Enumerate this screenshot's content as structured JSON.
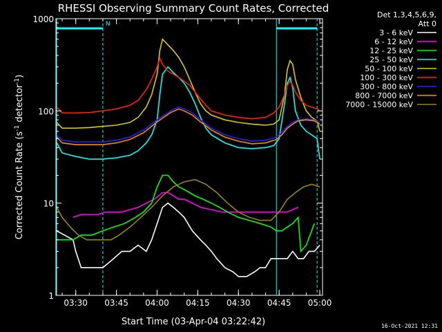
{
  "chart_data": {
    "type": "line",
    "title": "RHESSI Observing Summary Count Rates, Corrected",
    "xlabel": "Start Time (03-Apr-04 03:22:42)",
    "ylabel": "Corrected Count Rate (s⁻¹ detector⁻¹)",
    "y_scale": "log",
    "ylim": [
      1,
      1000
    ],
    "xlim": [
      "03:22:42",
      "05:01:00"
    ],
    "x_ticks": [
      "03:30",
      "03:45",
      "04:00",
      "04:15",
      "04:30",
      "04:45",
      "05:00"
    ],
    "y_ticks": [
      "1",
      "10",
      "100",
      "1000"
    ],
    "grid": false,
    "legend_position": "top-right",
    "legend_header": [
      "Det 1,3,4,5,6,9,",
      "Att 0"
    ],
    "annotations": [
      {
        "text": "N",
        "at": "03:40",
        "y": 900
      }
    ],
    "series": [
      {
        "name": "3 - 6 keV",
        "color": "#ffffff",
        "x": [
          "03:23",
          "03:29",
          "03:30",
          "03:32",
          "03:35",
          "03:38",
          "03:40",
          "03:44",
          "03:47",
          "03:50",
          "03:53",
          "03:56",
          "03:58",
          "04:00",
          "04:02",
          "04:04",
          "04:06",
          "04:08",
          "04:10",
          "04:13",
          "04:16",
          "04:18",
          "04:20",
          "04:22",
          "04:25",
          "04:28",
          "04:30",
          "04:33",
          "04:36",
          "04:38",
          "04:40",
          "04:42",
          "04:44",
          "04:46",
          "04:48",
          "04:50",
          "04:52",
          "04:54",
          "04:56",
          "04:58",
          "05:00"
        ],
        "values": [
          5,
          4,
          3,
          2,
          2,
          2,
          2,
          2.5,
          3,
          3,
          3.5,
          3,
          4,
          6,
          9,
          10,
          9,
          8,
          7,
          5,
          4,
          3.5,
          3,
          2.5,
          2,
          1.8,
          1.6,
          1.6,
          1.8,
          2,
          2,
          2.5,
          2.5,
          2.5,
          2.5,
          3,
          2.5,
          2.5,
          3,
          3,
          3.5
        ]
      },
      {
        "name": "6 - 12 keV",
        "color": "#ff00ff",
        "x": [
          "03:29",
          "03:32",
          "03:35",
          "03:38",
          "03:41",
          "03:44",
          "03:47",
          "03:50",
          "03:53",
          "03:56",
          "03:59",
          "04:02",
          "04:04",
          "04:06",
          "04:08",
          "04:10",
          "04:13",
          "04:16",
          "04:20",
          "04:24",
          "04:28",
          "04:32",
          "04:36",
          "04:40",
          "04:44",
          "04:46",
          "04:48",
          "04:50",
          "04:52"
        ],
        "values": [
          7,
          7.5,
          7.5,
          7.5,
          8,
          8,
          8,
          8.5,
          9,
          10,
          11,
          13,
          13,
          12,
          11,
          11,
          10,
          9,
          8.5,
          8,
          8,
          8,
          8,
          8,
          8,
          8,
          8,
          8.5,
          9
        ]
      },
      {
        "name": "12 - 25 keV",
        "color": "#00ff00",
        "x": [
          "03:23",
          "03:26",
          "03:29",
          "03:32",
          "03:36",
          "03:40",
          "03:44",
          "03:48",
          "03:52",
          "03:55",
          "03:58",
          "04:00",
          "04:02",
          "04:04",
          "04:06",
          "04:08",
          "04:10",
          "04:12",
          "04:14",
          "04:17",
          "04:20",
          "04:23",
          "04:26",
          "04:30",
          "04:34",
          "04:38",
          "04:42",
          "04:44",
          "04:46",
          "04:48",
          "04:50",
          "04:52",
          "04:53",
          "04:55",
          "04:58"
        ],
        "values": [
          4,
          4,
          4,
          4.5,
          4.5,
          5,
          5.5,
          6,
          7,
          8,
          10,
          15,
          20,
          20,
          17,
          15,
          14,
          13,
          12,
          11,
          10,
          9,
          8,
          7,
          6.5,
          6,
          5.5,
          5,
          5,
          5.5,
          6,
          7,
          3,
          3.5,
          6
        ]
      },
      {
        "name": "25 - 50 keV",
        "color": "#00ffff",
        "x": [
          "03:23",
          "03:25",
          "03:30",
          "03:35",
          "03:40",
          "03:45",
          "03:50",
          "03:53",
          "03:56",
          "03:58",
          "04:00",
          "04:01",
          "04:02",
          "04:04",
          "04:06",
          "04:08",
          "04:10",
          "04:12",
          "04:14",
          "04:16",
          "04:18",
          "04:20",
          "04:25",
          "04:30",
          "04:35",
          "04:40",
          "04:43",
          "04:45",
          "04:47",
          "04:48",
          "04:49",
          "04:50",
          "04:51",
          "04:53",
          "04:55",
          "04:57",
          "04:59",
          "05:00"
        ],
        "values": [
          45,
          35,
          32,
          30,
          30,
          31,
          33,
          37,
          45,
          55,
          80,
          150,
          250,
          300,
          260,
          230,
          200,
          160,
          120,
          85,
          65,
          55,
          45,
          40,
          39,
          40,
          42,
          50,
          120,
          200,
          230,
          180,
          100,
          70,
          60,
          55,
          50,
          30
        ]
      },
      {
        "name": "50 - 100 keV",
        "color": "#ddcc00",
        "x": [
          "03:23",
          "03:25",
          "03:30",
          "03:35",
          "03:40",
          "03:45",
          "03:50",
          "03:53",
          "03:56",
          "03:58",
          "04:00",
          "04:01",
          "04:02",
          "04:04",
          "04:06",
          "04:08",
          "04:10",
          "04:12",
          "04:14",
          "04:16",
          "04:18",
          "04:20",
          "04:25",
          "04:30",
          "04:35",
          "04:40",
          "04:43",
          "04:45",
          "04:47",
          "04:48",
          "04:49",
          "04:50",
          "04:51",
          "04:53",
          "04:55",
          "04:57",
          "04:59",
          "05:00"
        ],
        "values": [
          75,
          65,
          65,
          66,
          68,
          70,
          75,
          85,
          110,
          150,
          250,
          450,
          600,
          520,
          450,
          380,
          300,
          220,
          160,
          120,
          100,
          90,
          80,
          75,
          72,
          70,
          72,
          80,
          150,
          280,
          350,
          320,
          220,
          140,
          100,
          85,
          78,
          60
        ]
      },
      {
        "name": "100 - 300 keV",
        "color": "#ff2200",
        "x": [
          "03:23",
          "03:25",
          "03:30",
          "03:35",
          "03:40",
          "03:45",
          "03:50",
          "03:53",
          "03:56",
          "03:58",
          "04:00",
          "04:01",
          "04:02",
          "04:04",
          "04:06",
          "04:08",
          "04:10",
          "04:12",
          "04:14",
          "04:16",
          "04:18",
          "04:20",
          "04:25",
          "04:30",
          "04:35",
          "04:40",
          "04:43",
          "04:45",
          "04:47",
          "04:48",
          "04:49",
          "04:50",
          "04:51",
          "04:53",
          "04:55",
          "04:57",
          "04:59",
          "05:00"
        ],
        "values": [
          110,
          95,
          95,
          96,
          100,
          105,
          115,
          130,
          170,
          220,
          300,
          370,
          320,
          270,
          250,
          230,
          210,
          190,
          160,
          135,
          115,
          100,
          90,
          85,
          82,
          85,
          95,
          110,
          150,
          190,
          210,
          190,
          160,
          130,
          115,
          110,
          105,
          100
        ]
      },
      {
        "name": "300 - 800 keV",
        "color": "#2222ff",
        "x": [
          "03:23",
          "03:25",
          "03:30",
          "03:35",
          "03:40",
          "03:45",
          "03:50",
          "03:55",
          "04:00",
          "04:05",
          "04:08",
          "04:10",
          "04:13",
          "04:16",
          "04:20",
          "04:25",
          "04:30",
          "04:35",
          "04:40",
          "04:44",
          "04:46",
          "04:48",
          "04:50",
          "04:52",
          "04:55",
          "04:58",
          "05:00"
        ],
        "values": [
          55,
          48,
          46,
          46,
          46,
          48,
          52,
          62,
          80,
          100,
          110,
          105,
          95,
          80,
          65,
          55,
          50,
          47,
          48,
          52,
          58,
          68,
          75,
          80,
          82,
          80,
          75
        ]
      },
      {
        "name": "800 - 7000 keV",
        "color": "#ff8800",
        "x": [
          "03:23",
          "03:25",
          "03:30",
          "03:35",
          "03:40",
          "03:45",
          "03:50",
          "03:55",
          "04:00",
          "04:05",
          "04:08",
          "04:10",
          "04:13",
          "04:16",
          "04:20",
          "04:25",
          "04:30",
          "04:35",
          "04:40",
          "04:44",
          "04:46",
          "04:48",
          "04:50",
          "04:52",
          "04:55",
          "04:58",
          "05:00"
        ],
        "values": [
          52,
          45,
          43,
          43,
          43,
          45,
          49,
          58,
          76,
          96,
          105,
          100,
          90,
          76,
          62,
          52,
          47,
          44,
          45,
          49,
          55,
          65,
          72,
          78,
          80,
          78,
          72
        ]
      },
      {
        "name": "7000 - 15000 keV",
        "color": "#998800",
        "x": [
          "03:23",
          "03:25",
          "03:28",
          "03:31",
          "03:34",
          "03:37",
          "03:40",
          "03:43",
          "03:46",
          "03:50",
          "03:54",
          "03:58",
          "04:02",
          "04:06",
          "04:10",
          "04:14",
          "04:18",
          "04:22",
          "04:26",
          "04:30",
          "04:34",
          "04:38",
          "04:42",
          "04:45",
          "04:48",
          "04:51",
          "04:54",
          "04:57",
          "05:00"
        ],
        "values": [
          9,
          7,
          5.5,
          4.5,
          4,
          4,
          4,
          4,
          4.5,
          5.5,
          7,
          9,
          12,
          15,
          17,
          18,
          16,
          13,
          10,
          8,
          7,
          6.5,
          6.5,
          8,
          11,
          13,
          15,
          16,
          15
        ]
      }
    ]
  },
  "footer": {
    "timestamp": "16-Oct-2021 12:31"
  }
}
